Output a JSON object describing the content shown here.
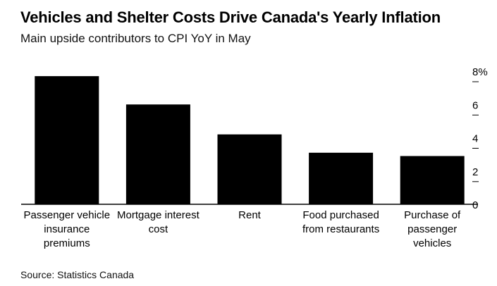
{
  "chart_data": {
    "type": "bar",
    "title": "Vehicles and Shelter Costs Drive Canada's Yearly Inflation",
    "subtitle": "Main upside contributors to CPI YoY in May",
    "categories": [
      "Passenger vehicle insurance premiums",
      "Mortgage interest cost",
      "Rent",
      "Food purchased from restaurants",
      "Purchase of passenger vehicles"
    ],
    "category_lines": [
      [
        "Passenger vehicle",
        "insurance",
        "premiums"
      ],
      [
        "Mortgage interest",
        "cost"
      ],
      [
        "Rent"
      ],
      [
        "Food purchased",
        "from restaurants"
      ],
      [
        "Purchase of",
        "passenger",
        "vehicles"
      ]
    ],
    "values": [
      7.7,
      6.0,
      4.2,
      3.1,
      2.9
    ],
    "ylim": [
      0,
      8
    ],
    "yticks": [
      0,
      2,
      4,
      6,
      8
    ],
    "ytick_labels": [
      "0",
      "2",
      "4",
      "6",
      "8%"
    ],
    "xlabel": "",
    "ylabel": "",
    "axis_side": "right",
    "grid": false,
    "bar_color": "#000000"
  },
  "source": "Source: Statistics Canada"
}
